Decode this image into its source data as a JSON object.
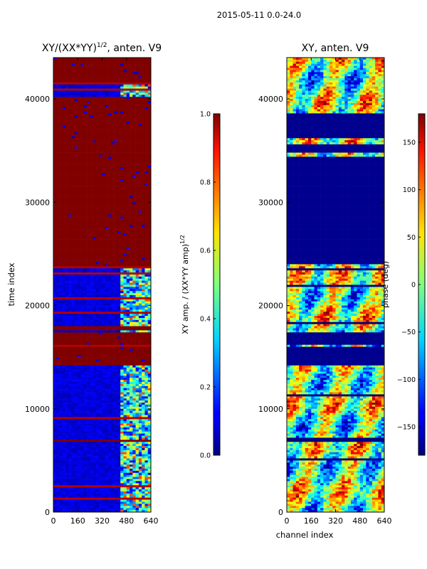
{
  "chart_data": {
    "type": "heatmap",
    "figure_title": "2015-05-11 0.0-24.0",
    "panels": [
      {
        "id": "amp",
        "title": "XY/(XX*YY)",
        "title_sup": "1/2",
        "title_suffix": ", anten. V9",
        "xlabel": "",
        "ylabel": "time index",
        "xlim": [
          0,
          640
        ],
        "ylim": [
          0,
          44000
        ],
        "xticks": [
          0,
          160,
          320,
          480,
          640
        ],
        "xtick_labels": [
          "0",
          "160",
          "320",
          "480",
          "640"
        ],
        "yticks": [
          0,
          10000,
          20000,
          30000,
          40000
        ],
        "ytick_labels": [
          "0",
          "10000",
          "20000",
          "30000",
          "40000"
        ],
        "colormap": "jet",
        "colorbar": {
          "label": "XY amp. / (XX*YY amp)",
          "label_sup": "1/2",
          "range": [
            0.0,
            1.0
          ],
          "ticks": [
            0.0,
            0.2,
            0.4,
            0.6,
            0.8,
            1.0
          ],
          "tick_labels": [
            "0.0",
            "0.2",
            "0.4",
            "0.6",
            "0.8",
            "1.0"
          ]
        },
        "saturated_time_blocks": [
          [
            14200,
            16000
          ],
          [
            16300,
            17400
          ],
          [
            17600,
            18000
          ],
          [
            23900,
            40200
          ],
          [
            41700,
            44000
          ]
        ],
        "dense_channel_band": [
          440,
          640
        ],
        "typical_value": 0.05
      },
      {
        "id": "phase",
        "title": "XY, anten. V9",
        "xlabel": "channel index",
        "ylabel": "",
        "xlim": [
          0,
          640
        ],
        "ylim": [
          0,
          44000
        ],
        "xticks": [
          0,
          160,
          320,
          480,
          640
        ],
        "xtick_labels": [
          "0",
          "160",
          "320",
          "480",
          "640"
        ],
        "yticks": [
          0,
          10000,
          20000,
          30000,
          40000
        ],
        "ytick_labels": [
          "0",
          "10000",
          "20000",
          "30000",
          "40000"
        ],
        "colormap": "jet",
        "colorbar": {
          "label": "phase (deg)",
          "range": [
            -180,
            180
          ],
          "ticks": [
            -150,
            -100,
            -50,
            0,
            50,
            100,
            150
          ],
          "tick_labels": [
            "−150",
            "−100",
            "−50",
            "0",
            "50",
            "100",
            "150"
          ]
        },
        "uniform_phase_blocks": [
          [
            14200,
            16000
          ],
          [
            16300,
            17400
          ],
          [
            24000,
            34400
          ],
          [
            34900,
            35500
          ],
          [
            36200,
            38600
          ]
        ],
        "uniform_phase_value": -175
      }
    ]
  }
}
